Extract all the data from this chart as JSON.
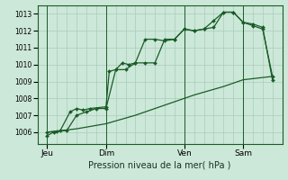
{
  "title": "Pression niveau de la mer( hPa )",
  "background_color": "#cce8d8",
  "grid_color": "#aaccbb",
  "line_color": "#1a5c28",
  "xlim": [
    0,
    75
  ],
  "ylim": [
    1005.3,
    1013.5
  ],
  "yticks": [
    1006,
    1007,
    1008,
    1009,
    1010,
    1011,
    1012,
    1013
  ],
  "ytick_fontsize": 5.5,
  "xtick_fontsize": 6.5,
  "xlabel_fontsize": 7.0,
  "xtick_labels": [
    "Jeu",
    "Dim",
    "Ven",
    "Sam"
  ],
  "xtick_positions": [
    3,
    21,
    45,
    63
  ],
  "vline_positions": [
    3,
    21,
    45,
    63
  ],
  "series1_x": [
    3,
    5,
    7,
    10,
    12,
    14,
    16,
    21,
    22,
    24,
    26,
    28,
    30,
    33,
    36,
    39,
    42,
    45,
    48,
    51,
    54,
    57,
    60,
    63,
    66,
    69,
    72
  ],
  "series1_y": [
    1005.8,
    1006.0,
    1006.1,
    1007.2,
    1007.4,
    1007.3,
    1007.4,
    1007.5,
    1009.6,
    1009.7,
    1010.1,
    1010.0,
    1010.1,
    1011.5,
    1011.5,
    1011.4,
    1011.5,
    1012.1,
    1012.0,
    1012.1,
    1012.6,
    1013.1,
    1013.1,
    1012.5,
    1012.3,
    1012.1,
    1009.3
  ],
  "series2_x": [
    3,
    6,
    9,
    12,
    15,
    18,
    21,
    24,
    27,
    30,
    33,
    36,
    39,
    42,
    45,
    48,
    51,
    54,
    57,
    60,
    63,
    66,
    69,
    72
  ],
  "series2_y": [
    1006.0,
    1006.05,
    1006.1,
    1007.0,
    1007.2,
    1007.4,
    1007.4,
    1009.7,
    1009.7,
    1010.1,
    1010.1,
    1010.1,
    1011.5,
    1011.5,
    1012.1,
    1012.0,
    1012.1,
    1012.2,
    1013.1,
    1013.1,
    1012.5,
    1012.4,
    1012.2,
    1009.1
  ],
  "series3_x": [
    3,
    12,
    21,
    30,
    39,
    48,
    57,
    63,
    72
  ],
  "series3_y": [
    1006.0,
    1006.2,
    1006.5,
    1007.0,
    1007.6,
    1008.2,
    1008.7,
    1009.1,
    1009.3
  ]
}
